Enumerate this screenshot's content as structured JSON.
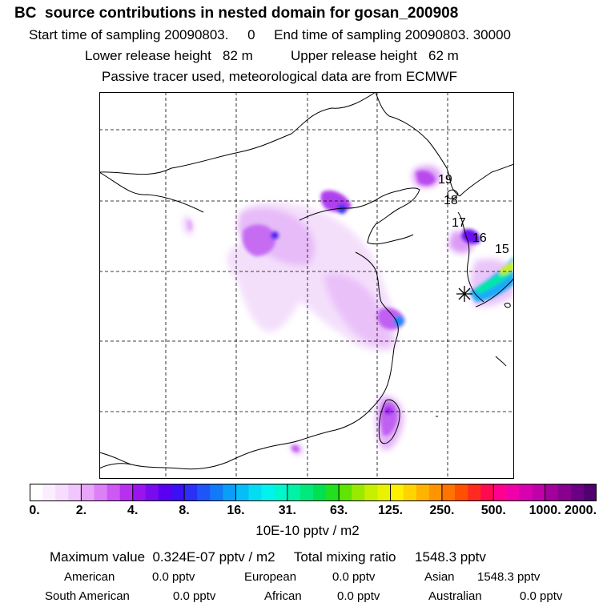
{
  "header": {
    "title": "BC  source contributions in nested domain for gosan_200908",
    "sampling": "Start time of sampling 20090803.     0     End time of sampling 20090803. 30000",
    "release": "Lower release height   82 m          Upper release height   62 m",
    "tracer": "Passive tracer used, meteorological data are from ECMWF"
  },
  "map": {
    "grid_lines": "dashed",
    "receptor_marker": "asterisk",
    "trajectory_labels": [
      "19",
      "18",
      "17",
      "16",
      "15"
    ]
  },
  "colorbar": {
    "ticks": [
      "0.",
      "2.",
      "4.",
      "8.",
      "16.",
      "31.",
      "63.",
      "125.",
      "250.",
      "500.",
      "1000.",
      "2000."
    ],
    "colors": [
      "#ffffff",
      "#fbeefe",
      "#f6ddfd",
      "#f0c6fc",
      "#e8a6fa",
      "#dd80f7",
      "#cd58f3",
      "#b830ef",
      "#9a14ee",
      "#7a0af0",
      "#5a00f2",
      "#3c10f4",
      "#2a30f6",
      "#1e55f8",
      "#107af8",
      "#0a9ef8",
      "#06bef7",
      "#04dcf3",
      "#00f3ec",
      "#00f7cc",
      "#00f2a6",
      "#00e97c",
      "#00e152",
      "#20e020",
      "#60e400",
      "#9aea00",
      "#c8ef00",
      "#eaf200",
      "#fef000",
      "#ffd400",
      "#ffb400",
      "#ff9400",
      "#ff7300",
      "#ff5000",
      "#ff2a20",
      "#ff0a50",
      "#ff0090",
      "#f000a8",
      "#d800b0",
      "#c000a8",
      "#a4009c",
      "#880090",
      "#6c0084",
      "#520070"
    ],
    "units": "10E-10 pptv / m2"
  },
  "stats": {
    "max_total": "Maximum value  0.324E-07 pptv / m2     Total mixing ratio     1548.3 pptv",
    "row1": [
      {
        "label": "American",
        "value": "0.0 pptv"
      },
      {
        "label": "European",
        "value": "0.0 pptv"
      },
      {
        "label": "Asian",
        "value": "1548.3 pptv"
      }
    ],
    "row2": [
      {
        "label": "South American",
        "value": "0.0 pptv"
      },
      {
        "label": "African",
        "value": "0.0 pptv"
      },
      {
        "label": "Australian",
        "value": "0.0 pptv"
      }
    ]
  }
}
